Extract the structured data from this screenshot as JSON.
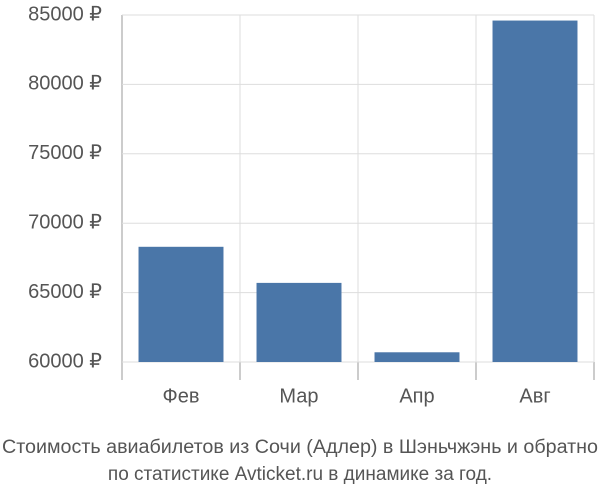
{
  "chart_data": {
    "type": "bar",
    "title": "Стоимость авиабилетов из Сочи (Адлер) в Шэньчжэнь и обратно",
    "subtitle": "по статистике Avticket.ru в динамике за год.",
    "categories": [
      "Фев",
      "Мар",
      "Апр",
      "Авг"
    ],
    "values": [
      68300,
      65700,
      60700,
      84600
    ],
    "color": "#4a76a8",
    "ylim": [
      60000,
      85000
    ],
    "yticks": [
      {
        "value": 60000,
        "label": "60000 ₽"
      },
      {
        "value": 65000,
        "label": "65000 ₽"
      },
      {
        "value": 70000,
        "label": "70000 ₽"
      },
      {
        "value": 75000,
        "label": "75000 ₽"
      },
      {
        "value": 80000,
        "label": "80000 ₽"
      },
      {
        "value": 85000,
        "label": "85000 ₽"
      }
    ],
    "grid": true
  }
}
